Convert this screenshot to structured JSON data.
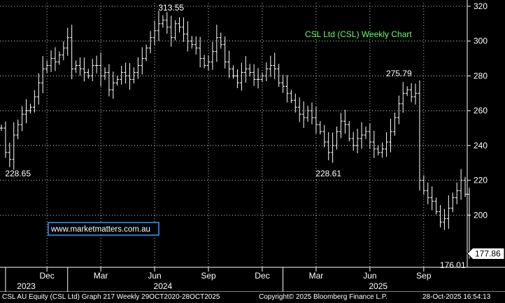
{
  "chart_data": {
    "type": "ohlc",
    "title": "CSL Ltd (CSL) Weekly Chart",
    "ylim": [
      170,
      322
    ],
    "y_ticks": [
      200,
      220,
      240,
      260,
      280,
      300,
      320
    ],
    "x_ticks": [
      {
        "week": 11,
        "label": "Dec"
      },
      {
        "week": 24,
        "label": "Mar"
      },
      {
        "week": 37,
        "label": "Jun"
      },
      {
        "week": 50,
        "label": "Sep"
      },
      {
        "week": 63,
        "label": "Dec"
      },
      {
        "week": 76,
        "label": "Mar"
      },
      {
        "week": 89,
        "label": "Jun"
      },
      {
        "week": 102,
        "label": "Sep"
      }
    ],
    "year_labels": [
      {
        "week": 6,
        "label": "2023"
      },
      {
        "week": 39,
        "label": "2024"
      },
      {
        "week": 91,
        "label": "2025"
      }
    ],
    "year_dividers": [
      1,
      16,
      68
    ],
    "last_price": "177.86",
    "last_price_value": 177.86,
    "annotations": [
      {
        "text": "228.65",
        "week": 4,
        "value": 228.65,
        "pos": "below"
      },
      {
        "text": "313.55",
        "week": 41,
        "value": 313.55,
        "pos": "above"
      },
      {
        "text": "275.79",
        "week": 96,
        "value": 275.79,
        "pos": "above"
      },
      {
        "text": "228.61",
        "week": 79,
        "value": 228.61,
        "pos": "below"
      },
      {
        "text": "176.01",
        "week": 109,
        "value": 176.01,
        "pos": "below"
      }
    ],
    "close": [
      250,
      236,
      232,
      246,
      252,
      258,
      260,
      262,
      268,
      276,
      284,
      286,
      290,
      288,
      292,
      296,
      302,
      284,
      286,
      284,
      282,
      280,
      286,
      286,
      280,
      282,
      272,
      276,
      278,
      282,
      280,
      278,
      282,
      286,
      290,
      296,
      302,
      306,
      310,
      312,
      308,
      302,
      310,
      308,
      304,
      300,
      298,
      296,
      290,
      286,
      288,
      294,
      302,
      298,
      288,
      284,
      280,
      276,
      282,
      284,
      282,
      278,
      278,
      280,
      284,
      286,
      284,
      276,
      274,
      270,
      266,
      262,
      258,
      256,
      260,
      256,
      252,
      248,
      242,
      236,
      240,
      248,
      254,
      252,
      244,
      240,
      244,
      246,
      248,
      242,
      238,
      236,
      238,
      242,
      248,
      256,
      264,
      270,
      272,
      268,
      270,
      220,
      214,
      210,
      208,
      202,
      196,
      198,
      204,
      210,
      214,
      220,
      212,
      178
    ]
  },
  "watermark": "www.marketmatters.com.au",
  "footer": {
    "left": "CSL AU Equity (CSL Ltd) Graph 217 Weekly 29OCT2020-28OCT2025",
    "center": "Copyright© 2025 Bloomberg Finance L.P.",
    "right": "28-Oct-2025 16:54:13"
  },
  "colors": {
    "background": "#000000",
    "bars": "#ffffff",
    "grid": "#ffffff",
    "title": "#66ff66",
    "watermark_border": "#3399ff",
    "watermark_text": "#ffffff"
  }
}
